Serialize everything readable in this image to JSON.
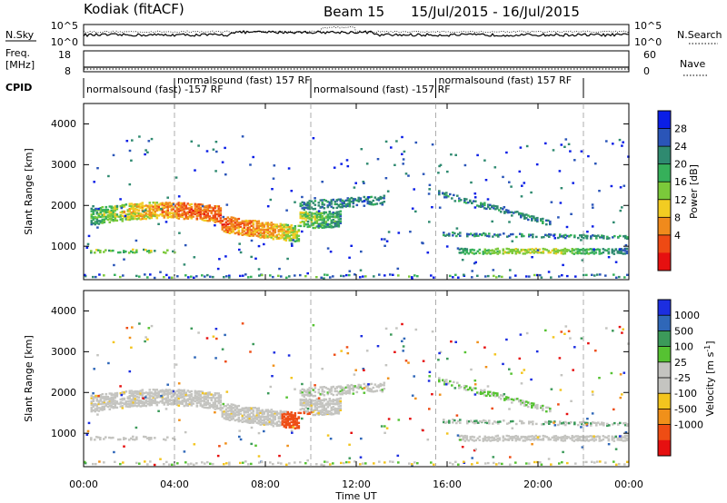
{
  "header": {
    "station": "Kodiak (fitACF)",
    "beam": "Beam 15",
    "date_range": "15/Jul/2015 - 16/Jul/2015"
  },
  "noise_panel": {
    "left_label": "N.Sky",
    "right_label": "N.Search",
    "left_ticks": [
      "10^5",
      "10^0"
    ],
    "right_ticks": [
      "10^5",
      "10^0"
    ]
  },
  "freq_panel": {
    "left_label_line1": "Freq.",
    "left_label_line2": "[MHz]",
    "left_ticks": [
      "18",
      "8"
    ],
    "right_label": "Nave",
    "right_ticks": [
      "60",
      "0"
    ]
  },
  "cpid": {
    "label": "CPID",
    "segments": [
      {
        "text": "normalsound (fast) -157 RF",
        "start": 0.0,
        "end": 4.0,
        "row": 1
      },
      {
        "text": "normalsound (fast) 157 RF",
        "start": 4.0,
        "end": 10.0,
        "row": 0
      },
      {
        "text": "normalsound (fast) -157 RF",
        "start": 10.0,
        "end": 15.5,
        "row": 1
      },
      {
        "text": "normalsound (fast) 157 RF",
        "start": 15.5,
        "end": 22.0,
        "row": 0
      }
    ]
  },
  "x_axis": {
    "label": "Time UT",
    "ticks": [
      "00:00",
      "04:00",
      "08:00",
      "12:00",
      "16:00",
      "20:00",
      "00:00"
    ],
    "range_hours": [
      0,
      24
    ]
  },
  "chart_data": [
    {
      "type": "heatmap",
      "ylabel": "Slant Range [km]",
      "ylim": [
        180,
        4500
      ],
      "yticks": [
        "4000",
        "3000",
        "2000",
        "1000"
      ],
      "colorbar": {
        "label": "Power [dB]",
        "ticks": [
          "28",
          "24",
          "20",
          "16",
          "12",
          "8",
          "4"
        ],
        "colors": [
          "#0a1ee6",
          "#2a55b8",
          "#2f8a70",
          "#36b05a",
          "#7bc93a",
          "#f2cc22",
          "#f08a1c",
          "#ee4a14",
          "#e61010"
        ]
      }
    },
    {
      "type": "heatmap",
      "ylabel": "Slant Range [km]",
      "ylim": [
        180,
        4500
      ],
      "yticks": [
        "4000",
        "3000",
        "2000",
        "1000"
      ],
      "colorbar": {
        "label": "Velocity [m s^-1]",
        "ticks": [
          "1000",
          "500",
          "100",
          "25",
          "-25",
          "-100",
          "-500",
          "-1000"
        ],
        "colors": [
          "#1c2ee0",
          "#2f67b8",
          "#3c9a5a",
          "#56c232",
          "#c4c4c0",
          "#c4c4c0",
          "#f3c51e",
          "#f0901a",
          "#ee4d14",
          "#e61010"
        ]
      }
    }
  ]
}
